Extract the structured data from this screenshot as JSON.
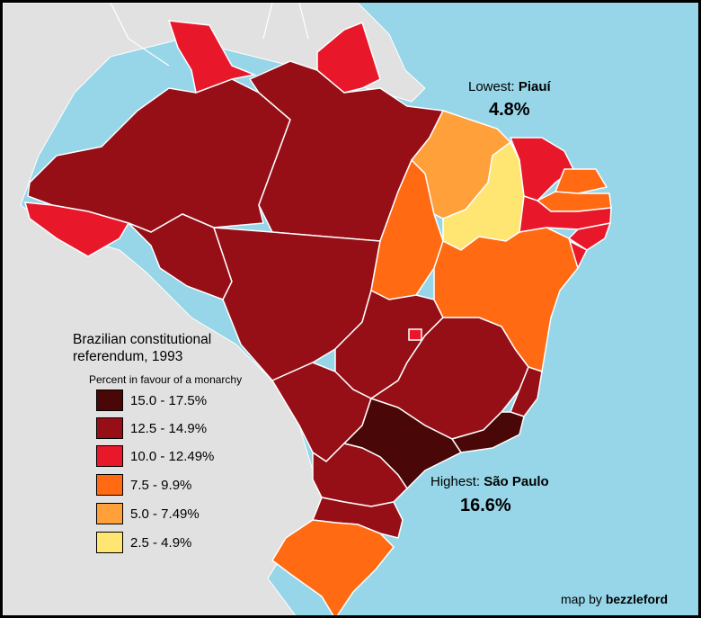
{
  "legend": {
    "title": "Brazilian constitutional referendum, 1993",
    "subtitle": "Percent in favour of a monarchy",
    "items": [
      {
        "label": "15.0 - 17.5%",
        "color": "#4a0707"
      },
      {
        "label": "12.5 - 14.9%",
        "color": "#960f17"
      },
      {
        "label": "10.0 - 12.49%",
        "color": "#e8182a"
      },
      {
        "label": "7.5 - 9.9%",
        "color": "#ff6a12"
      },
      {
        "label": "5.0 - 7.49%",
        "color": "#ffa03a"
      },
      {
        "label": "2.5 - 4.9%",
        "color": "#ffe571"
      }
    ]
  },
  "callouts": {
    "lowest": {
      "label": "Lowest:",
      "state": "Piauí",
      "value": "4.8%"
    },
    "highest": {
      "label": "Highest:",
      "state": "São Paulo",
      "value": "16.6%"
    }
  },
  "credit": {
    "prefix": "map by",
    "author": "bezzleford"
  },
  "colors": {
    "ocean": "#96d6e8",
    "land_outside": "#e1e1e1",
    "border": "#ffffff"
  }
}
